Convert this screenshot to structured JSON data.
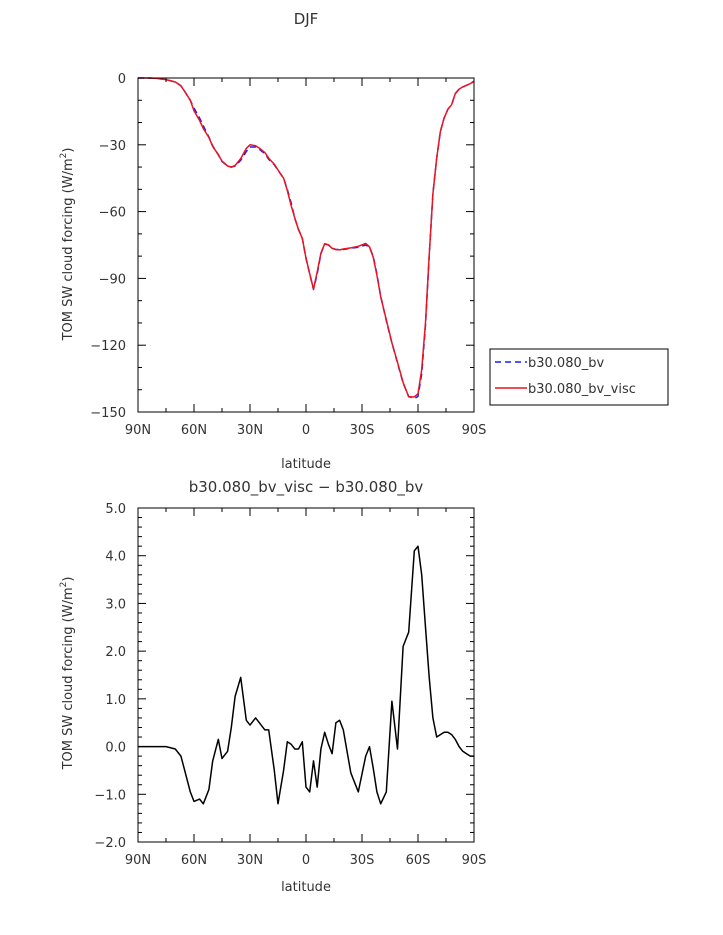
{
  "chart_data": [
    {
      "type": "line",
      "title": "DJF",
      "xlabel": "latitude",
      "ylabel": "TOM SW cloud forcing (W/m²)",
      "ylabel_parts": [
        "TOM SW cloud forcing (W/m",
        "2",
        ")"
      ],
      "xlim": [
        90,
        -90
      ],
      "ylim": [
        -150,
        0
      ],
      "x_ticks": [
        90,
        60,
        30,
        0,
        -30,
        -60,
        -90
      ],
      "x_tick_labels": [
        "90N",
        "60N",
        "30N",
        "0",
        "30S",
        "60S",
        "90S"
      ],
      "y_ticks": [
        0,
        -30,
        -60,
        -90,
        -120,
        -150
      ],
      "y_tick_labels": [
        "0",
        "−30",
        "−60",
        "−90",
        "−120",
        "−150"
      ],
      "legend_position": "right-outside",
      "grid": false,
      "series": [
        {
          "name": "b30.080_bv",
          "color": "#1a1aff",
          "dash": "dashed",
          "x": [
            90,
            85,
            80,
            75,
            70,
            67,
            65,
            62,
            60,
            57,
            55,
            52,
            50,
            47,
            45,
            42,
            40,
            38,
            35,
            32,
            30,
            27,
            25,
            22,
            20,
            17,
            15,
            12,
            10,
            8,
            6,
            4,
            2,
            0,
            -2,
            -4,
            -6,
            -8,
            -10,
            -12,
            -14,
            -16,
            -18,
            -20,
            -24,
            -28,
            -32,
            -34,
            -36,
            -38,
            -40,
            -43,
            -46,
            -49,
            -52,
            -55,
            -58,
            -60,
            -62,
            -64,
            -66,
            -68,
            -70,
            -72,
            -74,
            -76,
            -78,
            -80,
            -82,
            -84,
            -86,
            -88,
            -90
          ],
          "values": [
            0,
            0,
            -0.2,
            -0.7,
            -1.8,
            -3.5,
            -6,
            -10,
            -13.5,
            -18,
            -21.5,
            -26.5,
            -30.5,
            -34.5,
            -37.5,
            -39.5,
            -40,
            -39.5,
            -37,
            -33,
            -31,
            -31,
            -32,
            -34,
            -36.5,
            -39,
            -41.5,
            -45,
            -50,
            -56,
            -63,
            -68,
            -72,
            -81,
            -88,
            -95,
            -88,
            -79,
            -74.5,
            -75,
            -76.5,
            -77,
            -77,
            -77,
            -76.5,
            -76,
            -75,
            -76,
            -80,
            -88,
            -98,
            -109,
            -119,
            -128,
            -137,
            -143,
            -144,
            -143,
            -133,
            -111,
            -80,
            -52,
            -36,
            -24,
            -18,
            -14,
            -12,
            -7,
            -5,
            -4,
            -3.3,
            -2.5,
            -1.5
          ]
        },
        {
          "name": "b30.080_bv_visc",
          "color": "#e8141f",
          "dash": "solid",
          "x": [
            90,
            85,
            80,
            75,
            70,
            67,
            65,
            62,
            60,
            57,
            55,
            52,
            50,
            47,
            45,
            42,
            40,
            38,
            35,
            32,
            30,
            27,
            25,
            22,
            20,
            17,
            15,
            12,
            10,
            8,
            6,
            4,
            2,
            0,
            -2,
            -4,
            -6,
            -8,
            -10,
            -12,
            -14,
            -16,
            -18,
            -20,
            -24,
            -28,
            -32,
            -34,
            -36,
            -38,
            -40,
            -43,
            -46,
            -49,
            -52,
            -55,
            -58,
            -60,
            -62,
            -64,
            -66,
            -68,
            -70,
            -72,
            -74,
            -76,
            -78,
            -80,
            -82,
            -84,
            -86,
            -88,
            -90
          ],
          "values": [
            0,
            0,
            -0.2,
            -0.7,
            -1.8,
            -3.5,
            -6,
            -10,
            -14.7,
            -19.1,
            -22.7,
            -26.7,
            -30.7,
            -34.4,
            -37.3,
            -39.5,
            -40,
            -39.3,
            -36.2,
            -31.6,
            -30,
            -30.4,
            -31.5,
            -33.5,
            -36,
            -38.7,
            -41.3,
            -45,
            -50.5,
            -57.2,
            -62.9,
            -68.1,
            -72,
            -80.9,
            -87.9,
            -94.8,
            -87.1,
            -78.7,
            -74.4,
            -74.9,
            -76.5,
            -77,
            -77.2,
            -76.8,
            -76.3,
            -75.6,
            -74.3,
            -75.8,
            -80.5,
            -88.5,
            -98.2,
            -108.6,
            -118.9,
            -127.7,
            -136.7,
            -143.2,
            -143.2,
            -141.8,
            -131,
            -109.8,
            -79.7,
            -52.1,
            -36,
            -24,
            -18,
            -14,
            -12,
            -7,
            -5,
            -4,
            -3.3,
            -2.5,
            -1.5
          ]
        }
      ]
    },
    {
      "type": "line",
      "title": "b30.080_bv_visc − b30.080_bv",
      "xlabel": "latitude",
      "ylabel": "TOM SW cloud forcing (W/m²)",
      "ylabel_parts": [
        "TOM SW cloud forcing (W/m",
        "2",
        ")"
      ],
      "xlim": [
        90,
        -90
      ],
      "ylim": [
        -2,
        5
      ],
      "x_ticks": [
        90,
        60,
        30,
        0,
        -30,
        -60,
        -90
      ],
      "x_tick_labels": [
        "90N",
        "60N",
        "30N",
        "0",
        "30S",
        "60S",
        "90S"
      ],
      "y_ticks": [
        5,
        4,
        3,
        2,
        1,
        0,
        -1,
        -2
      ],
      "y_tick_labels": [
        "5.0",
        "4.0",
        "3.0",
        "2.0",
        "1.0",
        "0.0",
        "−1.0",
        "−2.0"
      ],
      "grid": false,
      "series": [
        {
          "color": "#000000",
          "dash": "solid",
          "x": [
            90,
            85,
            80,
            75,
            70,
            67,
            65,
            62,
            60,
            57,
            55,
            52,
            50,
            47,
            45,
            42,
            40,
            38,
            35,
            32,
            30,
            27,
            25,
            22,
            20,
            17,
            15,
            12,
            10,
            8,
            6,
            4,
            2,
            0,
            -2,
            -4,
            -6,
            -8,
            -10,
            -12,
            -14,
            -16,
            -18,
            -20,
            -24,
            -28,
            -32,
            -34,
            -36,
            -38,
            -40,
            -43,
            -46,
            -49,
            -52,
            -55,
            -58,
            -60,
            -62,
            -64,
            -66,
            -68,
            -70,
            -72,
            -74,
            -76,
            -78,
            -80,
            -82,
            -84,
            -86,
            -88,
            -90
          ],
          "values": [
            0,
            0,
            0,
            0,
            -0.05,
            -0.2,
            -0.5,
            -0.95,
            -1.15,
            -1.1,
            -1.2,
            -0.9,
            -0.3,
            0.15,
            -0.25,
            -0.1,
            0.4,
            1.05,
            1.45,
            0.55,
            0.45,
            0.6,
            0.5,
            0.35,
            0.35,
            -0.5,
            -1.2,
            -0.5,
            0.1,
            0.05,
            -0.05,
            -0.05,
            0.1,
            -0.85,
            -0.95,
            -0.3,
            -0.85,
            -0.05,
            0.3,
            0.05,
            -0.15,
            0.5,
            0.55,
            0.35,
            -0.55,
            -0.95,
            -0.2,
            0,
            -0.45,
            -0.95,
            -1.2,
            -0.95,
            0.95,
            -0.05,
            2.1,
            2.4,
            4.1,
            4.2,
            3.6,
            2.5,
            1.45,
            0.6,
            0.2,
            0.25,
            0.3,
            0.3,
            0.25,
            0.15,
            0,
            -0.1,
            -0.15,
            -0.2,
            -0.2
          ]
        }
      ]
    }
  ]
}
